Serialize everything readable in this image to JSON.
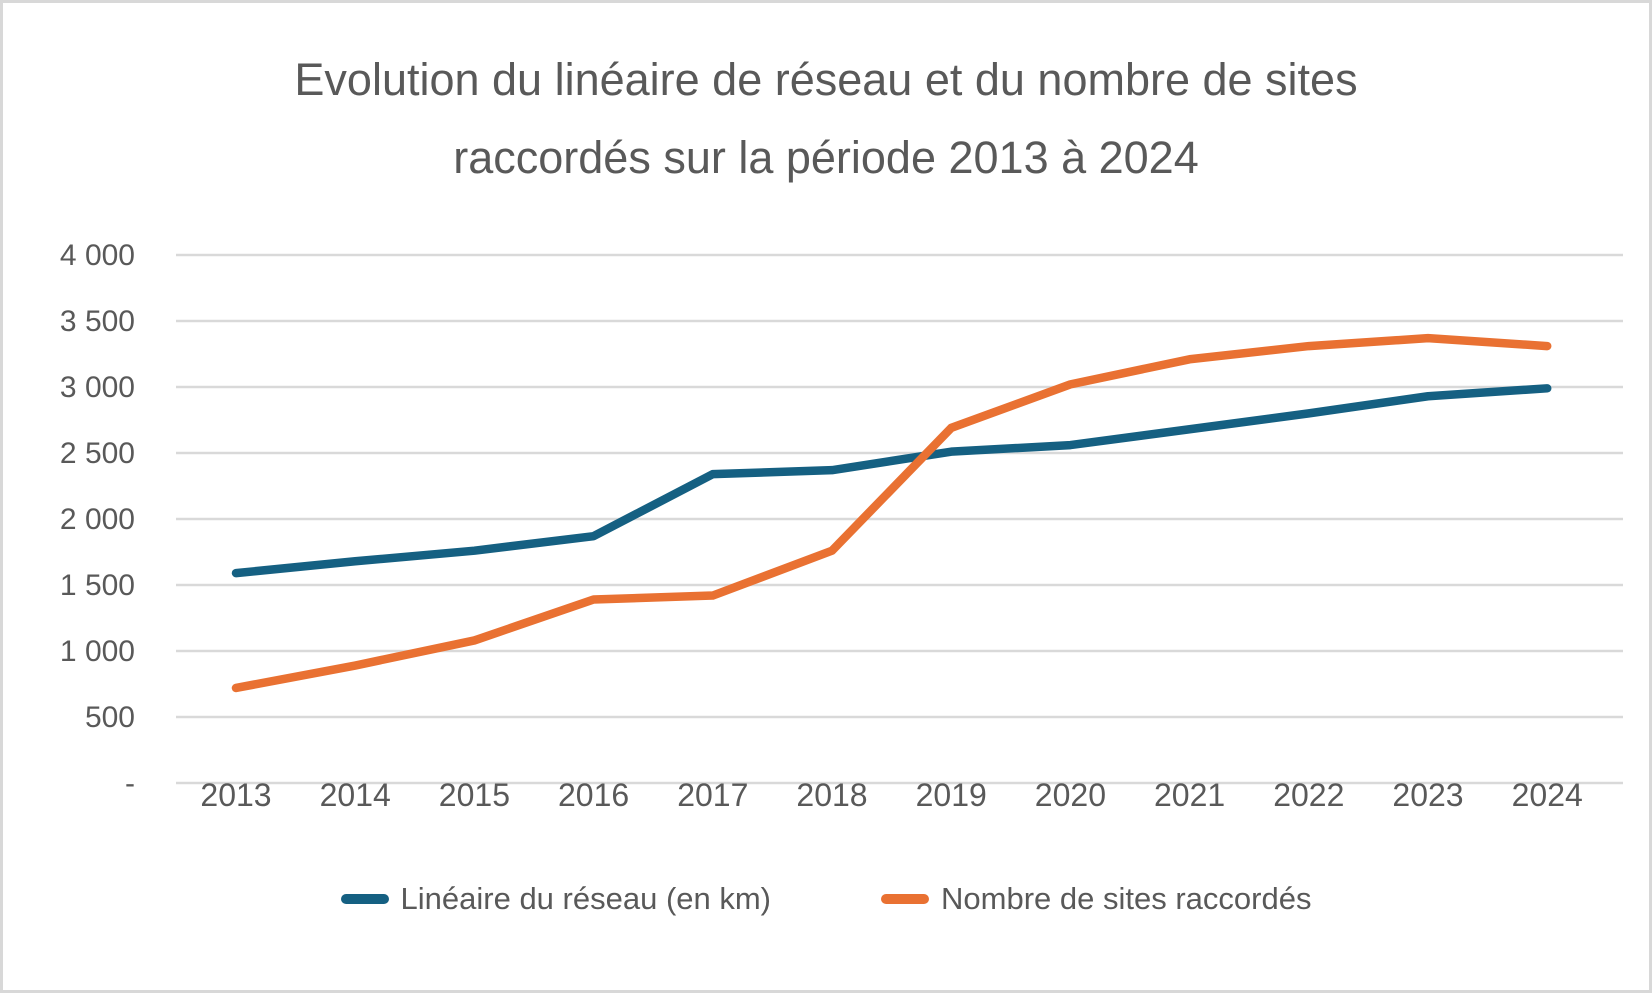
{
  "window": {
    "background": "#FFFFFF",
    "border_color": "#D8D8D8"
  },
  "chart_data": {
    "type": "line",
    "title": "Evolution du linéaire de réseau et du nombre de sites raccordés sur la période 2013 à 2024",
    "categories": [
      "2013",
      "2014",
      "2015",
      "2016",
      "2017",
      "2018",
      "2019",
      "2020",
      "2021",
      "2022",
      "2023",
      "2024"
    ],
    "series": [
      {
        "name": "Linéaire du réseau (en km)",
        "color": "#156082",
        "values": [
          1590,
          1680,
          1760,
          1870,
          2340,
          2370,
          2510,
          2560,
          2680,
          2800,
          2930,
          2990
        ]
      },
      {
        "name": "Nombre de sites raccordés",
        "color": "#E97132",
        "values": [
          720,
          890,
          1080,
          1390,
          1420,
          1760,
          2690,
          3020,
          3210,
          3310,
          3370,
          3310
        ]
      }
    ],
    "y_axis": {
      "min": 0,
      "max": 4000,
      "tick_step": 500,
      "tick_labels": [
        "-",
        "500",
        "1 000",
        "1 500",
        "2 000",
        "2 500",
        "3 000",
        "3 500",
        "4 000"
      ]
    },
    "x_axis": {
      "label_color": "#595959"
    },
    "grid": true,
    "legend_position": "bottom",
    "colors": {
      "grid": "#D9D9D9",
      "text": "#595959"
    }
  }
}
